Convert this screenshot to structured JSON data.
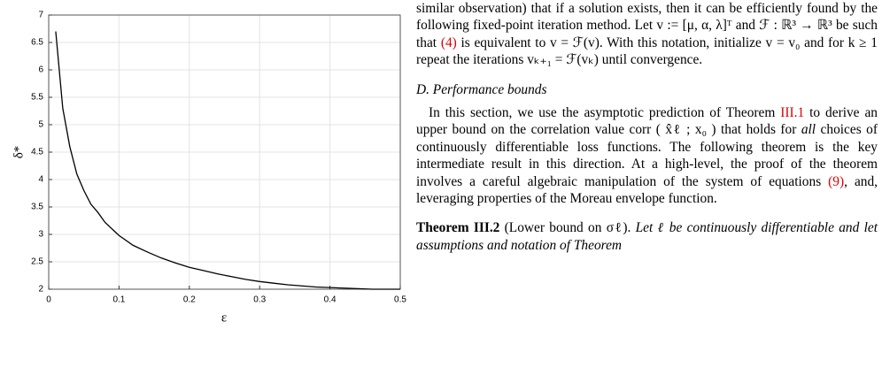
{
  "chart_data": {
    "type": "line",
    "xlabel": "ε",
    "ylabel": "δ*",
    "x": [
      0.01,
      0.02,
      0.03,
      0.04,
      0.05,
      0.06,
      0.07,
      0.08,
      0.09,
      0.1,
      0.12,
      0.14,
      0.16,
      0.18,
      0.2,
      0.22,
      0.24,
      0.26,
      0.28,
      0.3,
      0.32,
      0.34,
      0.36,
      0.38,
      0.4,
      0.42,
      0.44,
      0.46,
      0.48,
      0.5
    ],
    "values": [
      6.7,
      5.3,
      4.6,
      4.1,
      3.8,
      3.55,
      3.4,
      3.22,
      3.1,
      2.98,
      2.8,
      2.68,
      2.57,
      2.48,
      2.4,
      2.34,
      2.28,
      2.23,
      2.18,
      2.14,
      2.11,
      2.08,
      2.06,
      2.04,
      2.03,
      2.02,
      2.01,
      2.0,
      2.0,
      2.0
    ],
    "color": "#000000",
    "xlim": [
      0,
      0.5
    ],
    "xticks": [
      0,
      0.1,
      0.2,
      0.3,
      0.4,
      0.5
    ],
    "ylim": [
      2,
      7
    ],
    "yticks": [
      2,
      2.5,
      3,
      3.5,
      4,
      4.5,
      5,
      5.5,
      6,
      6.5,
      7
    ],
    "grid": true
  },
  "text": {
    "p1": [
      "similar observation) that if a solution exists, then it can be efficiently found by the following fixed-point iteration method. Let v := [μ, α, λ]ᵀ and ℱ : ℝ³ → ℝ³ be such that ",
      "(4)",
      " is equivalent to v = ℱ(v). With this notation, initialize v = v₀ and for k ≥ 1 repeat the iterations vₖ₊₁ = ℱ(vₖ) until convergence."
    ],
    "heading": "D. Performance bounds",
    "p2": [
      "In this section, we use the asymptotic prediction of Theorem ",
      "III.1",
      " to derive an upper bound on the correlation value corr ( x̂ℓ ; x₀ ) that holds for ",
      "all",
      " choices of continuously differentiable loss functions. The following theorem is the key intermediate result in this direction. At a high-level, the proof of the theorem involves a careful algebraic manipulation of the system of equations ",
      "(9)",
      ", and, leveraging properties of the Moreau envelope function."
    ],
    "theorem": {
      "label": "Theorem III.2",
      "title": " (Lower bound on σℓ).",
      "body": " Let ℓ be continuously differentiable and let assumptions and notation of Theorem"
    }
  }
}
